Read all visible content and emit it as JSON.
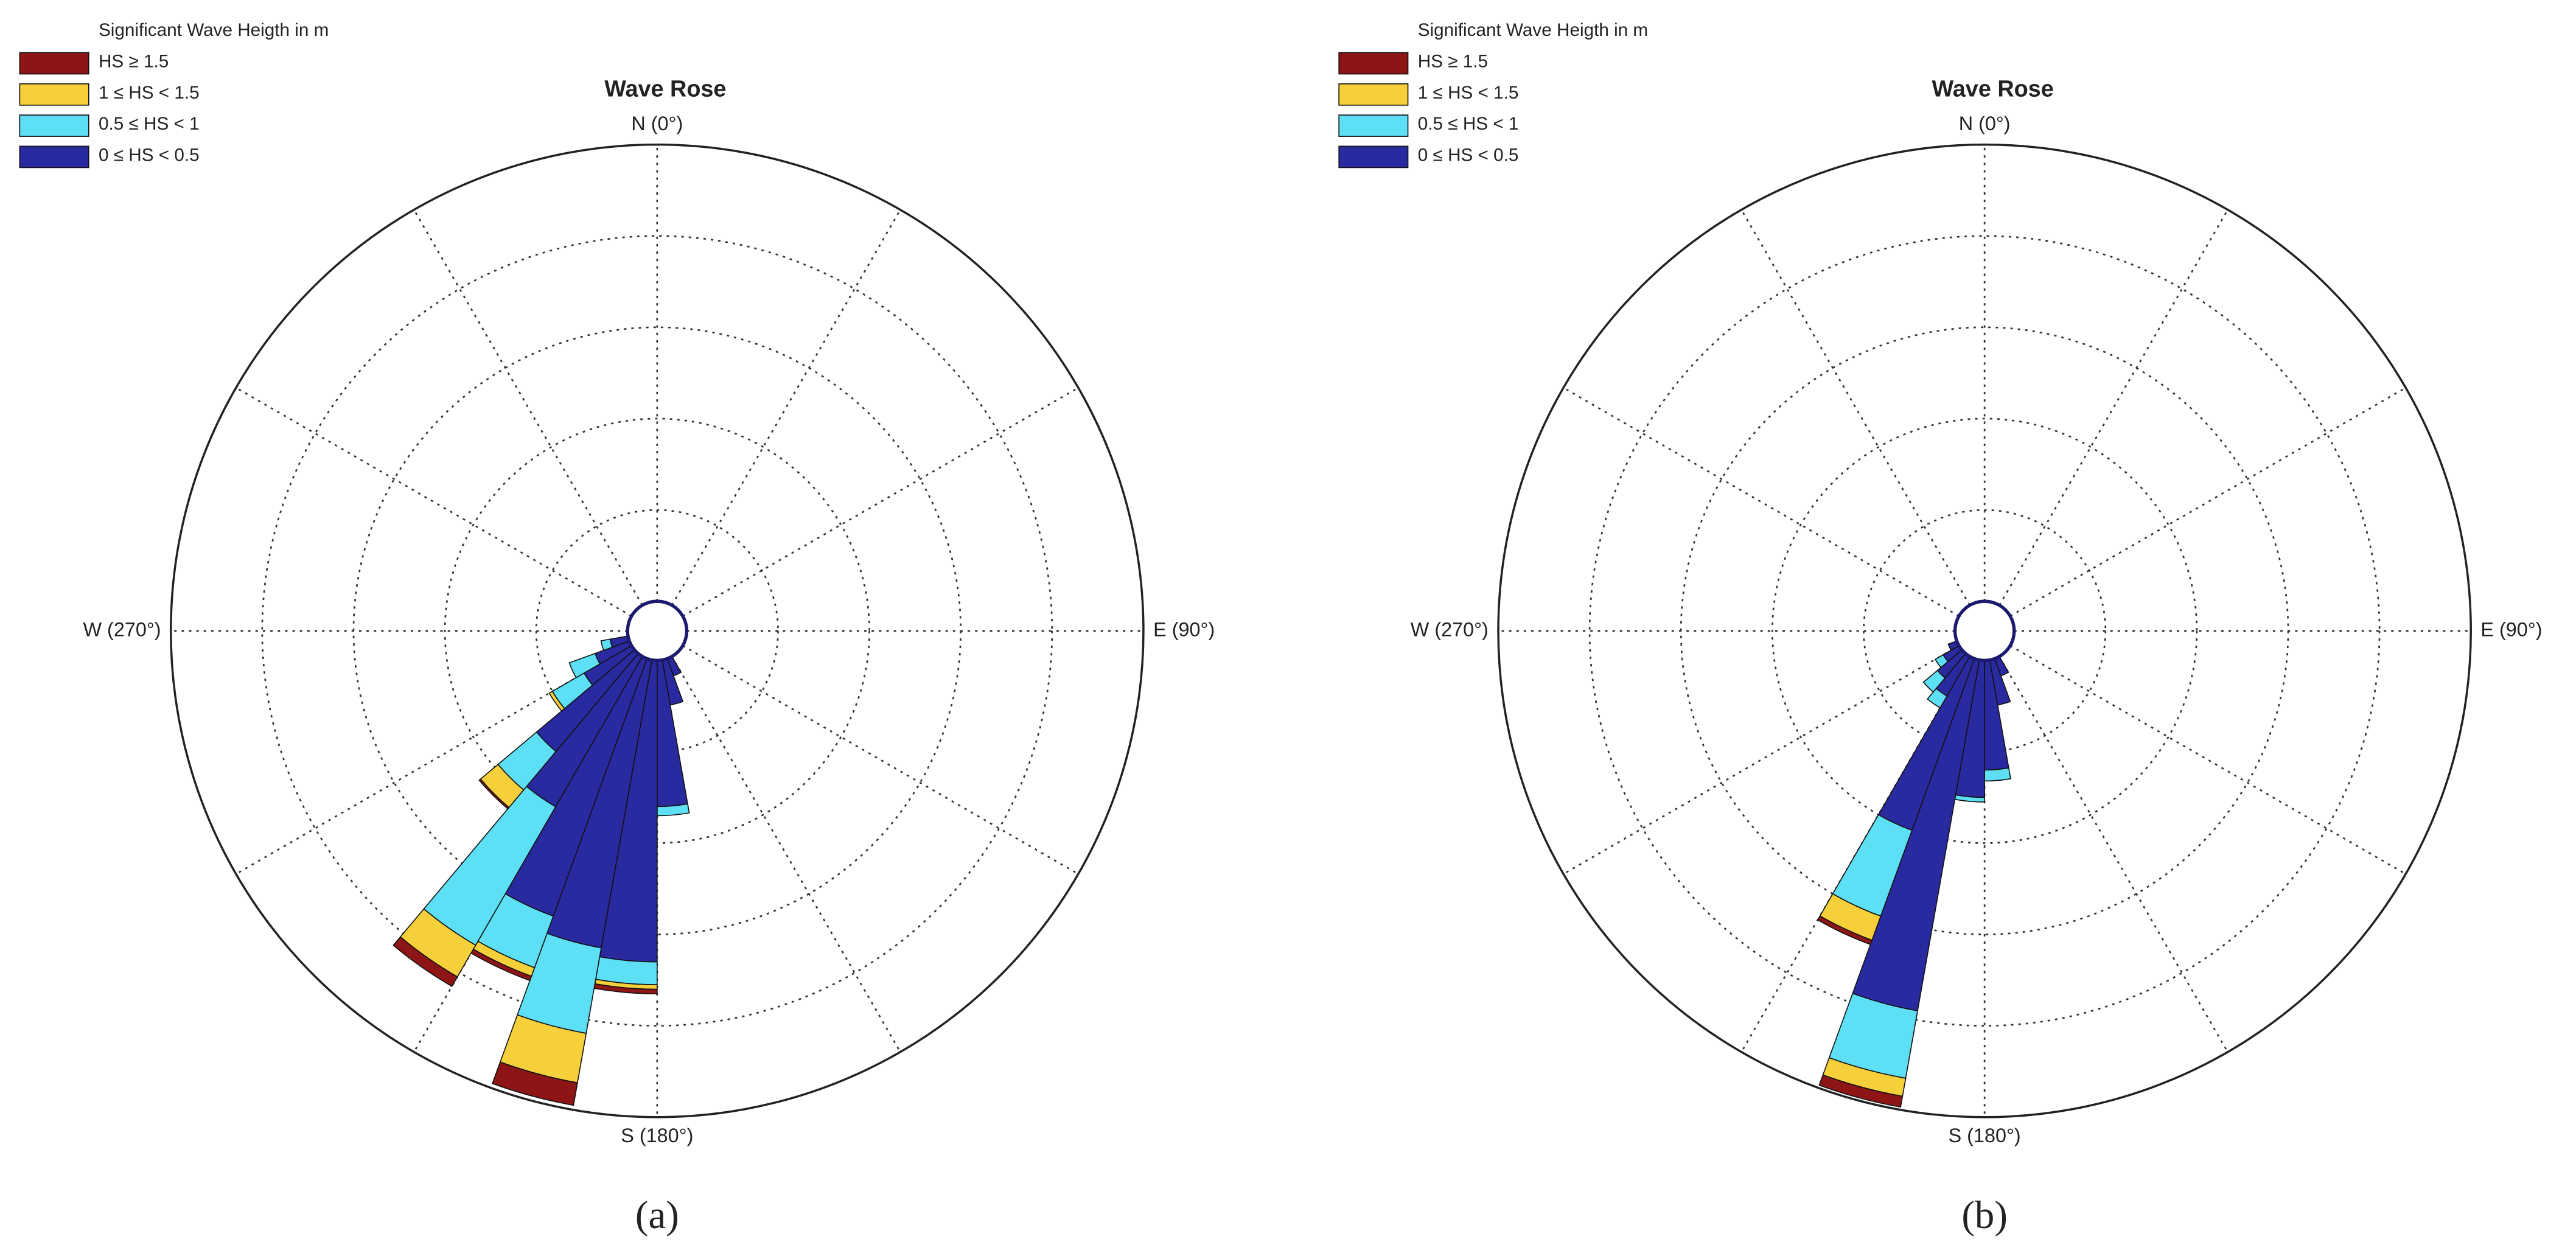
{
  "chart_data": [
    {
      "type": "rose",
      "title": "Wave Rose",
      "legend_title": "Significant Wave Heigth in m",
      "legend": "upper left",
      "caption": "(a)",
      "directions": [
        155,
        165,
        175,
        185,
        195,
        205,
        215,
        225,
        235,
        245,
        255
      ],
      "series": [
        {
          "name": "0 ≤ HS < 0.5",
          "color": "#2a2aa0",
          "values": [
            0.2,
            0.5,
            1.6,
            3.3,
            3.2,
            3.0,
            1.9,
            1.4,
            0.6,
            0.4,
            0.2
          ]
        },
        {
          "name": "0.5 ≤ HS < 1",
          "color": "#5ddff5",
          "values": [
            0,
            0,
            0.1,
            0.25,
            0.95,
            0.6,
            1.75,
            0.55,
            0.4,
            0.3,
            0.1
          ]
        },
        {
          "name": "1 ≤ HS < 1.5",
          "color": "#f6d03a",
          "values": [
            0,
            0,
            0,
            0.05,
            0.55,
            0.1,
            0.4,
            0.25,
            0.04,
            0,
            0
          ]
        },
        {
          "name": "HS ≥ 1.5",
          "color": "#8e1515",
          "values": [
            0,
            0,
            0,
            0.05,
            0.25,
            0.05,
            0.12,
            0.02,
            0,
            0,
            0
          ]
        }
      ],
      "rlim": [
        0,
        5
      ],
      "rticks": [
        1,
        2,
        3,
        4
      ],
      "theta_grid": [
        0,
        30,
        60,
        90,
        120,
        150,
        180,
        210,
        240,
        270,
        300,
        330
      ],
      "theta_labels": [
        {
          "value": 0,
          "label": "N (0°)"
        },
        {
          "value": 90,
          "label": "E (90°)"
        },
        {
          "value": 180,
          "label": "S (180°)"
        },
        {
          "value": 270,
          "label": "W (270°)"
        }
      ]
    },
    {
      "type": "rose",
      "title": "Wave Rose",
      "legend_title": "Significant Wave Heigth in m",
      "legend": "upper left",
      "caption": "(b)",
      "directions": [
        155,
        165,
        175,
        185,
        195,
        205,
        215,
        225,
        235,
        245
      ],
      "series": [
        {
          "name": "0 ≤ HS < 0.5",
          "color": "#2a2aa0",
          "values": [
            0.2,
            0.5,
            1.2,
            1.5,
            3.9,
            2.0,
            0.5,
            0.35,
            0.2,
            0.1
          ]
        },
        {
          "name": "0.5 ≤ HS < 1",
          "color": "#5ddff5",
          "values": [
            0,
            0,
            0.12,
            0.05,
            0.75,
            1.0,
            0.15,
            0.2,
            0.1,
            0
          ]
        },
        {
          "name": "1 ≤ HS < 1.5",
          "color": "#f6d03a",
          "values": [
            0,
            0,
            0,
            0,
            0.2,
            0.28,
            0,
            0,
            0,
            0
          ]
        },
        {
          "name": "HS ≥ 1.5",
          "color": "#8e1515",
          "values": [
            0,
            0,
            0,
            0,
            0.12,
            0.05,
            0,
            0,
            0,
            0
          ]
        }
      ],
      "rlim": [
        0,
        5
      ],
      "rticks": [
        1,
        2,
        3,
        4
      ],
      "theta_grid": [
        0,
        30,
        60,
        90,
        120,
        150,
        180,
        210,
        240,
        270,
        300,
        330
      ],
      "theta_labels": [
        {
          "value": 0,
          "label": "N (0°)"
        },
        {
          "value": 90,
          "label": "E (90°)"
        },
        {
          "value": 180,
          "label": "S (180°)"
        },
        {
          "value": 270,
          "label": "W (270°)"
        }
      ]
    }
  ]
}
